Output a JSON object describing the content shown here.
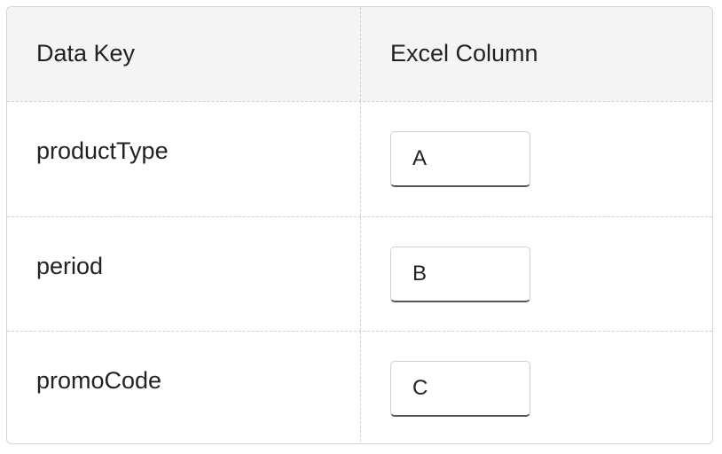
{
  "table": {
    "headers": [
      "Data Key",
      "Excel Column"
    ],
    "rows": [
      {
        "key": "productType",
        "column": "A"
      },
      {
        "key": "period",
        "column": "B"
      },
      {
        "key": "promoCode",
        "column": "C"
      }
    ]
  }
}
